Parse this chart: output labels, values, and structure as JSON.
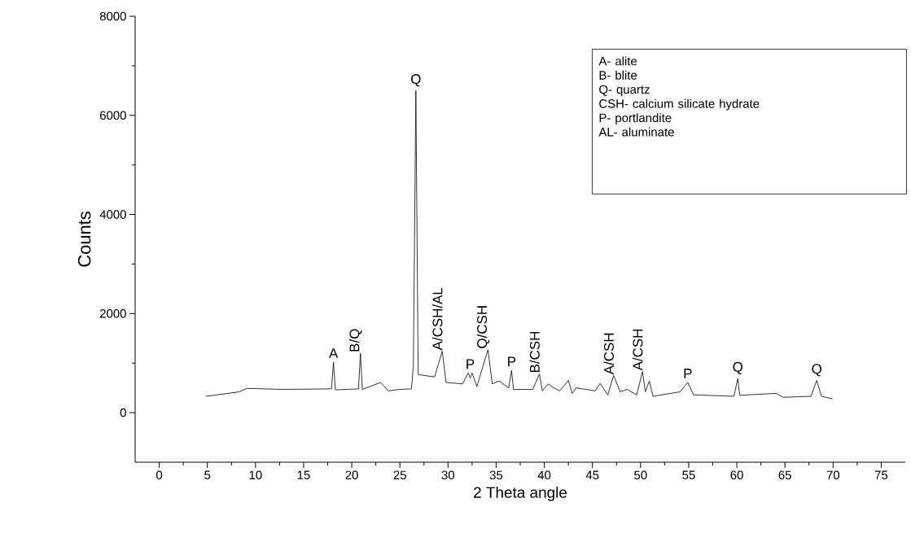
{
  "chart_data": {
    "type": "line",
    "xlabel": "2 Theta angle",
    "ylabel": "Counts",
    "xlim": [
      -2.5,
      77.5
    ],
    "xticks": [
      0,
      5,
      10,
      15,
      20,
      25,
      30,
      35,
      40,
      45,
      50,
      55,
      60,
      65,
      70,
      75
    ],
    "ylim": [
      -1000,
      8000
    ],
    "yticks": [
      0,
      2000,
      4000,
      6000,
      8000
    ],
    "grid": false,
    "marker": "none",
    "line_style": "solid",
    "series": [
      {
        "color": "#000000",
        "x": [
          4.9,
          8.3,
          9.1,
          12.8,
          17.9,
          18.1,
          18.3,
          20.7,
          20.9,
          21.1,
          23.0,
          23.8,
          25.0,
          26.2,
          26.4,
          26.66,
          26.9,
          28.6,
          29.4,
          29.8,
          31.5,
          32.1,
          32.3,
          32.5,
          33.0,
          34.15,
          34.6,
          35.3,
          36.3,
          36.6,
          36.8,
          38.8,
          39.5,
          39.8,
          40.4,
          41.1,
          41.6,
          42.5,
          42.9,
          43.3,
          45.3,
          45.8,
          46.6,
          47.2,
          47.9,
          48.6,
          49.6,
          50.2,
          50.5,
          50.9,
          51.3,
          54.1,
          54.9,
          55.5,
          59.7,
          60.1,
          60.3,
          64.1,
          64.8,
          67.7,
          68.3,
          68.8,
          69.9
        ],
        "values": [
          330,
          420,
          490,
          470,
          480,
          1020,
          460,
          480,
          1200,
          470,
          610,
          440,
          470,
          480,
          940,
          6500,
          770,
          720,
          1240,
          610,
          580,
          800,
          700,
          800,
          530,
          1270,
          580,
          640,
          500,
          850,
          470,
          470,
          780,
          440,
          580,
          490,
          440,
          650,
          390,
          500,
          440,
          590,
          360,
          750,
          420,
          470,
          360,
          830,
          420,
          640,
          330,
          420,
          610,
          360,
          330,
          690,
          350,
          390,
          310,
          330,
          650,
          330,
          280
        ]
      }
    ],
    "annotations": [
      {
        "text": "A",
        "x": 18.1,
        "y": 1020
      },
      {
        "text": "B/Q",
        "x": 20.9,
        "y": 1200
      },
      {
        "text": "Q",
        "x": 26.66,
        "y": 6500
      },
      {
        "text": "A/CSH/AL",
        "x": 29.4,
        "y": 1240
      },
      {
        "text": "P",
        "x": 32.3,
        "y": 800
      },
      {
        "text": "Q/CSH",
        "x": 34.15,
        "y": 1270
      },
      {
        "text": "P",
        "x": 36.6,
        "y": 850
      },
      {
        "text": "B/CSH",
        "x": 39.5,
        "y": 780
      },
      {
        "text": "A/CSH",
        "x": 47.2,
        "y": 750
      },
      {
        "text": "A/CSH",
        "x": 50.2,
        "y": 830
      },
      {
        "text": "P",
        "x": 54.9,
        "y": 610
      },
      {
        "text": "Q",
        "x": 60.1,
        "y": 690
      },
      {
        "text": "Q",
        "x": 68.3,
        "y": 650
      },
      "A- alite",
      "B- blite",
      "Q- quartz",
      "CSH- calcium silicate hydrate",
      "P- portlandite",
      "AL- aluminate"
    ]
  }
}
